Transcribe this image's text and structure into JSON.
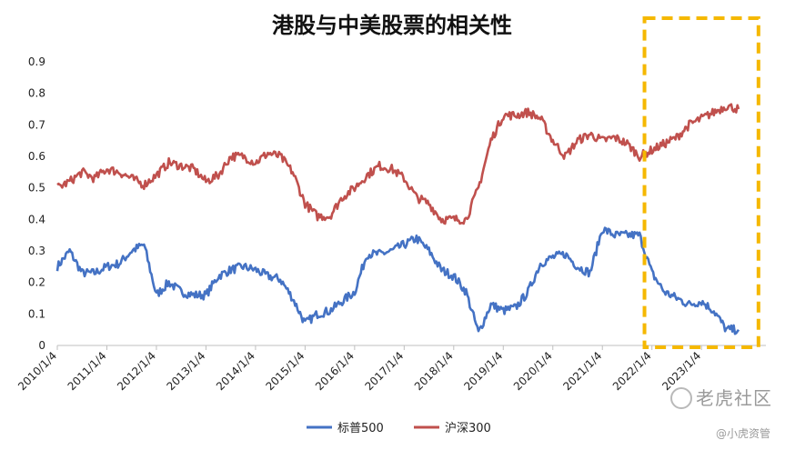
{
  "chart_data": {
    "type": "line",
    "title": "港股与中美股票的相关性",
    "xlabel": "",
    "ylabel": "",
    "ylim": [
      0,
      0.9
    ],
    "yticks": [
      "0",
      "0.1",
      "0.2",
      "0.3",
      "0.4",
      "0.5",
      "0.6",
      "0.7",
      "0.8",
      "0.9"
    ],
    "xticks": [
      "2010/1/4",
      "2011/1/4",
      "2012/1/4",
      "2013/1/4",
      "2014/1/4",
      "2015/1/4",
      "2016/1/4",
      "2017/1/4",
      "2018/1/4",
      "2019/1/4",
      "2020/1/4",
      "2021/1/4",
      "2022/1/4",
      "2023/1/4"
    ],
    "grid": false,
    "legend": "bottom",
    "x": [
      2010.0,
      2010.25,
      2010.5,
      2010.75,
      2011.0,
      2011.25,
      2011.5,
      2011.75,
      2012.0,
      2012.25,
      2012.5,
      2012.75,
      2013.0,
      2013.25,
      2013.5,
      2013.75,
      2014.0,
      2014.25,
      2014.5,
      2014.75,
      2015.0,
      2015.25,
      2015.5,
      2015.75,
      2016.0,
      2016.25,
      2016.5,
      2016.75,
      2017.0,
      2017.25,
      2017.5,
      2017.75,
      2018.0,
      2018.25,
      2018.5,
      2018.75,
      2019.0,
      2019.25,
      2019.5,
      2019.75,
      2020.0,
      2020.25,
      2020.5,
      2020.75,
      2021.0,
      2021.25,
      2021.5,
      2021.75,
      2022.0,
      2022.25,
      2022.5,
      2022.75,
      2023.0,
      2023.25,
      2023.5,
      2023.75
    ],
    "series": [
      {
        "name": "标普500",
        "color": "#4472C4",
        "values": [
          0.25,
          0.3,
          0.23,
          0.23,
          0.25,
          0.26,
          0.3,
          0.32,
          0.16,
          0.2,
          0.17,
          0.16,
          0.16,
          0.22,
          0.24,
          0.25,
          0.24,
          0.22,
          0.21,
          0.15,
          0.07,
          0.1,
          0.11,
          0.14,
          0.17,
          0.29,
          0.29,
          0.3,
          0.32,
          0.34,
          0.3,
          0.24,
          0.22,
          0.17,
          0.04,
          0.13,
          0.11,
          0.12,
          0.17,
          0.26,
          0.28,
          0.29,
          0.25,
          0.23,
          0.37,
          0.35,
          0.35,
          0.35,
          0.23,
          0.17,
          0.15,
          0.13,
          0.14,
          0.11,
          0.05,
          0.05
        ]
      },
      {
        "name": "沪深300",
        "color": "#C0504D",
        "values": [
          0.5,
          0.52,
          0.55,
          0.53,
          0.56,
          0.55,
          0.53,
          0.51,
          0.54,
          0.58,
          0.57,
          0.56,
          0.52,
          0.54,
          0.6,
          0.6,
          0.58,
          0.61,
          0.6,
          0.55,
          0.45,
          0.41,
          0.41,
          0.47,
          0.5,
          0.54,
          0.57,
          0.56,
          0.53,
          0.47,
          0.45,
          0.4,
          0.4,
          0.4,
          0.5,
          0.65,
          0.73,
          0.73,
          0.74,
          0.72,
          0.65,
          0.6,
          0.65,
          0.67,
          0.65,
          0.66,
          0.64,
          0.6,
          0.62,
          0.64,
          0.66,
          0.7,
          0.72,
          0.74,
          0.76,
          0.75
        ]
      }
    ],
    "highlight_box": {
      "x_from": 2021.85,
      "x_to": 2024.15,
      "color": "#F5B800",
      "style": "dashed"
    }
  },
  "watermark": {
    "main": "老虎社区",
    "sub": "@小虎资管"
  }
}
